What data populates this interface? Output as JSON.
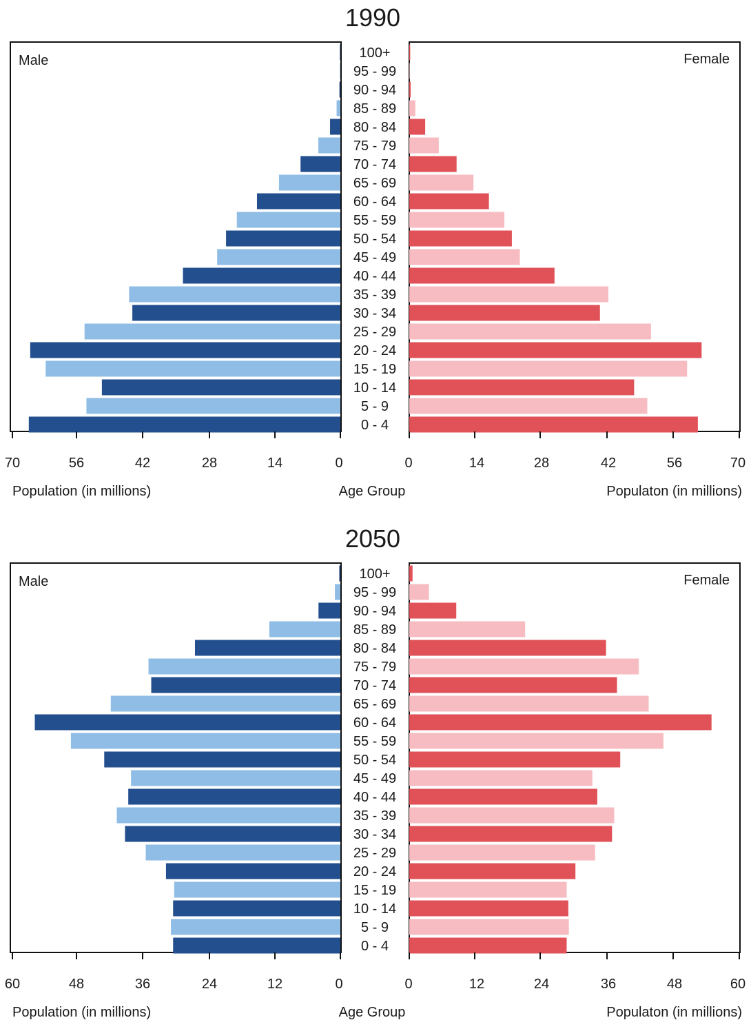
{
  "chart_data": [
    {
      "type": "bar",
      "title": "1990",
      "male_label": "Male",
      "female_label": "Female",
      "xlabel_left": "Population (in millions)",
      "xlabel_center": "Age Group",
      "xlabel_right": "Populaton (in millions)",
      "xlim": [
        0,
        70
      ],
      "ticks": [
        "70",
        "56",
        "42",
        "28",
        "14",
        "0",
        "0",
        "14",
        "28",
        "42",
        "56",
        "70"
      ],
      "categories": [
        "100+",
        "95 - 99",
        "90 - 94",
        "85 - 89",
        "80 - 84",
        "75 - 79",
        "70 - 74",
        "65 - 69",
        "60 - 64",
        "55 - 59",
        "50 - 54",
        "45 - 49",
        "40 - 44",
        "35 - 39",
        "30 - 34",
        "25 - 29",
        "20 - 24",
        "15 - 19",
        "10 - 14",
        "5 - 9",
        "0 - 4"
      ],
      "series": [
        {
          "name": "Male",
          "values": [
            0.1,
            0.1,
            0.2,
            0.8,
            2.2,
            4.7,
            8.5,
            13.1,
            17.8,
            22.1,
            24.4,
            26.3,
            33.6,
            45.1,
            44.4,
            54.6,
            66.2,
            62.9,
            50.9,
            54.2,
            66.5
          ]
        },
        {
          "name": "Female",
          "values": [
            0.2,
            0.1,
            0.3,
            1.3,
            3.4,
            6.3,
            10.1,
            13.7,
            17.0,
            20.3,
            21.9,
            23.6,
            31.0,
            42.5,
            40.7,
            51.6,
            62.4,
            59.3,
            48.0,
            50.8,
            61.6
          ]
        }
      ],
      "colors": {
        "male_dark": "#234f8e",
        "male_light": "#8fbde6",
        "female_dark": "#e05258",
        "female_light": "#f7bcc1"
      }
    },
    {
      "type": "bar",
      "title": "2050",
      "male_label": "Male",
      "female_label": "Female",
      "xlabel_left": "Population (in millions)",
      "xlabel_center": "Age Group",
      "xlabel_right": "Populaton (in millions)",
      "xlim": [
        0,
        60
      ],
      "ticks": [
        "60",
        "48",
        "36",
        "24",
        "12",
        "0",
        "0",
        "12",
        "24",
        "36",
        "48",
        "60"
      ],
      "categories": [
        "100+",
        "95 - 99",
        "90 - 94",
        "85 - 89",
        "80 - 84",
        "75 - 79",
        "70 - 74",
        "65 - 69",
        "60 - 64",
        "55 - 59",
        "50 - 54",
        "45 - 49",
        "40 - 44",
        "35 - 39",
        "30 - 34",
        "25 - 29",
        "20 - 24",
        "15 - 19",
        "10 - 14",
        "5 - 9",
        "0 - 4"
      ],
      "series": [
        {
          "name": "Male",
          "values": [
            0.2,
            1.0,
            4.0,
            13.0,
            26.6,
            35.1,
            34.6,
            42.0,
            55.9,
            49.3,
            43.2,
            38.3,
            38.8,
            40.9,
            39.4,
            35.6,
            31.9,
            30.4,
            30.6,
            31.0,
            30.6
          ]
        },
        {
          "name": "Female",
          "values": [
            0.6,
            3.6,
            8.6,
            21.2,
            36.0,
            42.0,
            38.0,
            43.8,
            55.3,
            46.5,
            38.6,
            33.5,
            34.4,
            37.5,
            37.1,
            34.0,
            30.4,
            28.8,
            29.1,
            29.2,
            28.8
          ]
        }
      ],
      "colors": {
        "male_dark": "#234f8e",
        "male_light": "#8fbde6",
        "female_dark": "#e05258",
        "female_light": "#f7bcc1"
      }
    }
  ]
}
